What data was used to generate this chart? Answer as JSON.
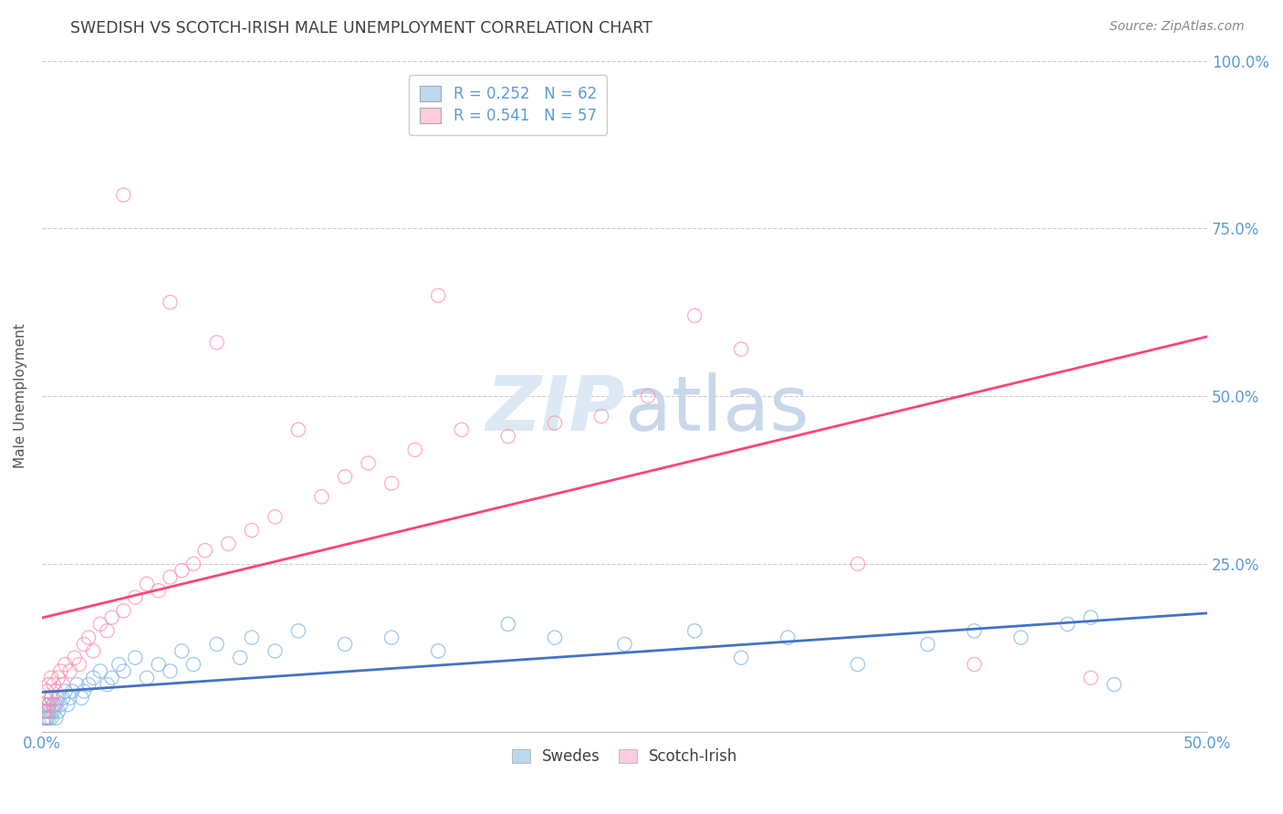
{
  "title": "SWEDISH VS SCOTCH-IRISH MALE UNEMPLOYMENT CORRELATION CHART",
  "source_text": "Source: ZipAtlas.com",
  "ylabel": "Male Unemployment",
  "xlim": [
    0.0,
    0.5
  ],
  "ylim": [
    0.0,
    1.0
  ],
  "xtick_labels": [
    "0.0%",
    "",
    "",
    "",
    "",
    "50.0%"
  ],
  "xtick_values": [
    0.0,
    0.1,
    0.2,
    0.3,
    0.4,
    0.5
  ],
  "ytick_labels": [
    "",
    "25.0%",
    "50.0%",
    "75.0%",
    "100.0%"
  ],
  "ytick_values": [
    0.0,
    0.25,
    0.5,
    0.75,
    1.0
  ],
  "tick_color": "#5B9BD5",
  "title_color": "#404040",
  "source_color": "#888888",
  "background_color": "#ffffff",
  "grid_color": "#cccccc",
  "legend_r1": "R = 0.252",
  "legend_n1": "N = 62",
  "legend_r2": "R = 0.541",
  "legend_n2": "N = 57",
  "legend_color1": "#BDD7EE",
  "legend_color2": "#FFCCE0",
  "scatter_color1": "#7EB6E8",
  "scatter_color2": "#FF8FAF",
  "line_color1": "#4472C4",
  "line_color2": "#FF4477",
  "swedes_x": [
    0.001,
    0.001,
    0.001,
    0.002,
    0.002,
    0.002,
    0.002,
    0.003,
    0.003,
    0.003,
    0.004,
    0.004,
    0.004,
    0.005,
    0.005,
    0.006,
    0.006,
    0.007,
    0.007,
    0.008,
    0.009,
    0.01,
    0.011,
    0.012,
    0.013,
    0.015,
    0.017,
    0.018,
    0.02,
    0.022,
    0.025,
    0.028,
    0.03,
    0.033,
    0.035,
    0.04,
    0.045,
    0.05,
    0.055,
    0.06,
    0.065,
    0.075,
    0.085,
    0.09,
    0.1,
    0.11,
    0.13,
    0.15,
    0.17,
    0.2,
    0.22,
    0.25,
    0.28,
    0.3,
    0.32,
    0.35,
    0.38,
    0.4,
    0.42,
    0.44,
    0.45,
    0.46
  ],
  "swedes_y": [
    0.03,
    0.02,
    0.04,
    0.02,
    0.03,
    0.05,
    0.02,
    0.03,
    0.04,
    0.02,
    0.03,
    0.05,
    0.02,
    0.04,
    0.03,
    0.04,
    0.02,
    0.05,
    0.03,
    0.04,
    0.05,
    0.06,
    0.04,
    0.05,
    0.06,
    0.07,
    0.05,
    0.06,
    0.07,
    0.08,
    0.09,
    0.07,
    0.08,
    0.1,
    0.09,
    0.11,
    0.08,
    0.1,
    0.09,
    0.12,
    0.1,
    0.13,
    0.11,
    0.14,
    0.12,
    0.15,
    0.13,
    0.14,
    0.12,
    0.16,
    0.14,
    0.13,
    0.15,
    0.11,
    0.14,
    0.1,
    0.13,
    0.15,
    0.14,
    0.16,
    0.17,
    0.07
  ],
  "scotch_x": [
    0.001,
    0.001,
    0.001,
    0.002,
    0.002,
    0.002,
    0.003,
    0.003,
    0.004,
    0.004,
    0.005,
    0.005,
    0.006,
    0.007,
    0.008,
    0.009,
    0.01,
    0.012,
    0.014,
    0.016,
    0.018,
    0.02,
    0.022,
    0.025,
    0.028,
    0.03,
    0.035,
    0.04,
    0.045,
    0.05,
    0.055,
    0.06,
    0.065,
    0.07,
    0.08,
    0.09,
    0.1,
    0.12,
    0.13,
    0.14,
    0.15,
    0.16,
    0.18,
    0.2,
    0.22,
    0.24,
    0.26,
    0.28,
    0.3,
    0.35,
    0.4,
    0.45,
    0.17,
    0.11,
    0.075,
    0.055,
    0.035
  ],
  "scotch_y": [
    0.02,
    0.04,
    0.03,
    0.05,
    0.03,
    0.06,
    0.04,
    0.07,
    0.05,
    0.08,
    0.04,
    0.07,
    0.06,
    0.08,
    0.09,
    0.07,
    0.1,
    0.09,
    0.11,
    0.1,
    0.13,
    0.14,
    0.12,
    0.16,
    0.15,
    0.17,
    0.18,
    0.2,
    0.22,
    0.21,
    0.23,
    0.24,
    0.25,
    0.27,
    0.28,
    0.3,
    0.32,
    0.35,
    0.38,
    0.4,
    0.37,
    0.42,
    0.45,
    0.44,
    0.46,
    0.47,
    0.5,
    0.62,
    0.57,
    0.25,
    0.1,
    0.08,
    0.65,
    0.45,
    0.58,
    0.64,
    0.8
  ],
  "watermark_color": "#dce9f5",
  "watermark_fontsize": 60,
  "legend_text_color": "#5B9BD5"
}
